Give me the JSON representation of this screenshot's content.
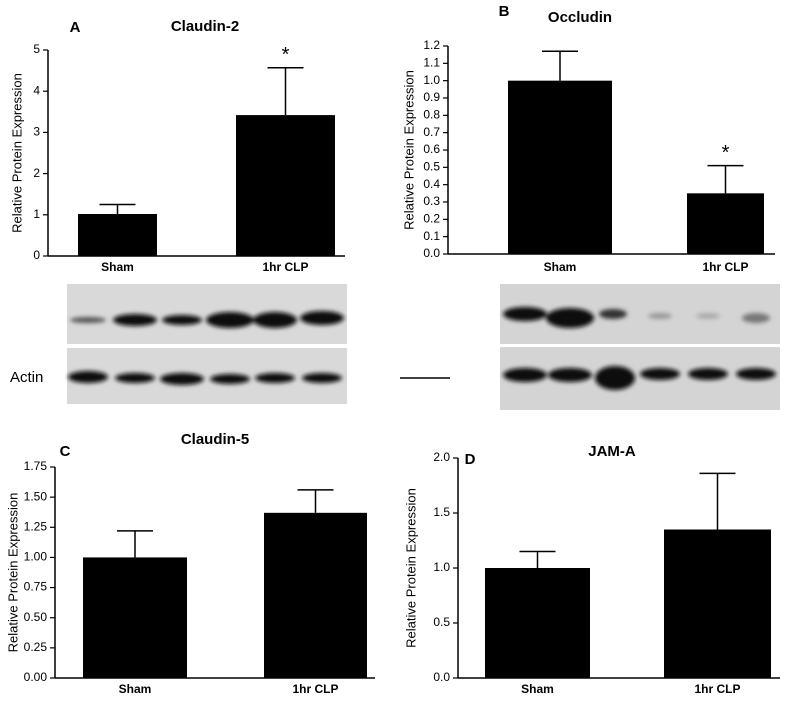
{
  "chart_data": [
    {
      "type": "bar",
      "panel_label": "A",
      "title": "Claudin-2",
      "y_label": "Relative Protein Expression",
      "categories": [
        "Sham",
        "1hr CLP"
      ],
      "values": [
        1.02,
        3.42
      ],
      "errors": [
        0.23,
        1.15
      ],
      "color": "#000000",
      "ylim": [
        0,
        5
      ],
      "yticks": [
        0,
        1,
        2,
        3,
        4,
        5
      ],
      "annotations": [
        {
          "text": "*",
          "category": "1hr CLP"
        }
      ]
    },
    {
      "type": "bar",
      "panel_label": "B",
      "title": "Occludin",
      "y_label": "Relative Protein Expression",
      "categories": [
        "Sham",
        "1hr CLP"
      ],
      "values": [
        1.0,
        0.35
      ],
      "errors": [
        0.17,
        0.16
      ],
      "color": "#000000",
      "ylim": [
        0,
        1.2
      ],
      "yticks": [
        {
          "value": 0,
          "label": "0.0"
        },
        0.1,
        0.2,
        0.3,
        0.4,
        0.5,
        0.6,
        0.7,
        0.8,
        0.9,
        {
          "value": 1,
          "label": "1.0"
        },
        1.1,
        1.2
      ],
      "annotations": [
        {
          "text": "*",
          "category": "1hr CLP"
        }
      ]
    },
    {
      "type": "bar",
      "panel_label": "C",
      "title": "Claudin-5",
      "y_label": "Relative Protein Expression",
      "categories": [
        "Sham",
        "1hr CLP"
      ],
      "values": [
        1.0,
        1.37
      ],
      "errors": [
        0.22,
        0.19
      ],
      "color": "#000000",
      "ylim": [
        0,
        1.75
      ],
      "yticks": [
        {
          "value": 0,
          "label": "0.00"
        },
        {
          "value": 0.25,
          "label": "0.25"
        },
        {
          "value": 0.5,
          "label": "0.50"
        },
        {
          "value": 0.75,
          "label": "0.75"
        },
        {
          "value": 1,
          "label": "1.00"
        },
        {
          "value": 1.25,
          "label": "1.25"
        },
        {
          "value": 1.5,
          "label": "1.50"
        },
        {
          "value": 1.75,
          "label": "1.75"
        }
      ]
    },
    {
      "type": "bar",
      "panel_label": "D",
      "title": "JAM-A",
      "y_label": "Relative Protein Expression",
      "categories": [
        "Sham",
        "1hr CLP"
      ],
      "values": [
        1.0,
        1.35
      ],
      "errors": [
        0.15,
        0.51
      ],
      "color": "#000000",
      "ylim": [
        0,
        2.0
      ],
      "yticks": [
        {
          "value": 0,
          "label": "0.0"
        },
        0.5,
        {
          "value": 1,
          "label": "1.0"
        },
        1.5,
        {
          "value": 2,
          "label": "2.0"
        }
      ]
    }
  ],
  "blot": {
    "label": "Actin"
  }
}
